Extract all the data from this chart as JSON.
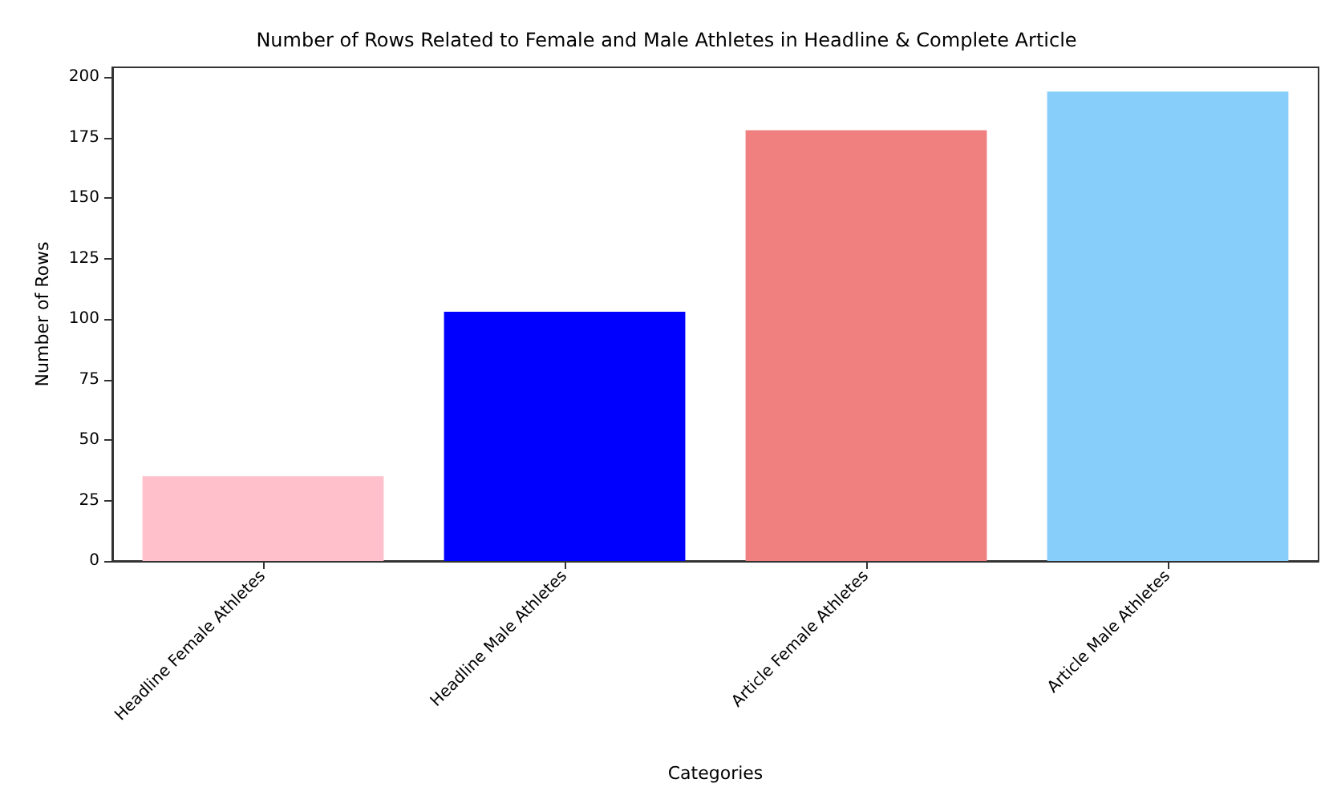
{
  "chart_data": {
    "type": "bar",
    "title": "Number of Rows Related to Female and Male Athletes in Headline & Complete Article",
    "xlabel": "Categories",
    "ylabel": "Number of Rows",
    "categories": [
      "Headline Female Athletes",
      "Headline Male Athletes",
      "Article Female Athletes",
      "Article Male Athletes"
    ],
    "values": [
      35,
      103,
      178,
      194
    ],
    "colors": [
      "#ffc0cb",
      "#0000ff",
      "#f08080",
      "#87cefa"
    ],
    "ylim": [
      0,
      204
    ],
    "yticks": [
      0,
      25,
      50,
      75,
      100,
      125,
      150,
      175,
      200
    ],
    "grid": false
  }
}
